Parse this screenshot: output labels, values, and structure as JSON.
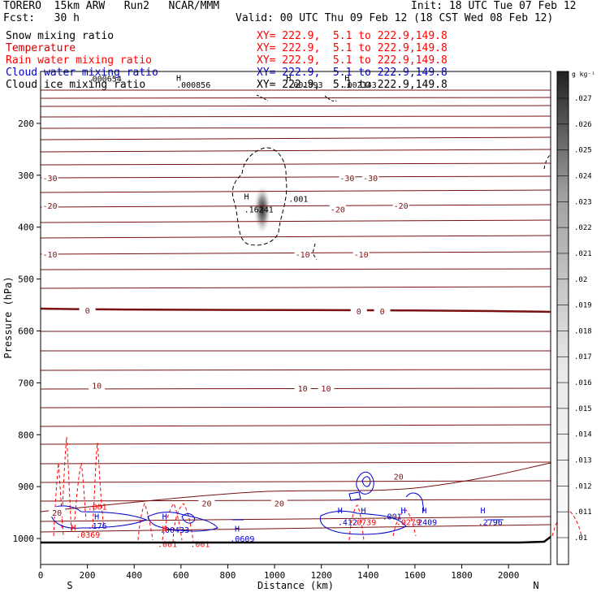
{
  "header": {
    "model_line": "TORERO  15km ARW   Run2   NCAR/MMM",
    "init": "Init: 18 UTC Tue 07 Feb 12",
    "fcst": "Fcst:   30 h",
    "valid": "Valid: 00 UTC Thu 09 Feb 12 (18 CST Wed 08 Feb 12)"
  },
  "fields": [
    {
      "name": "Snow mixing ratio",
      "color": "#000000",
      "xsect": "XY= 222.9,  5.1 to 222.9,149.8",
      "xcolor": "#ff0000"
    },
    {
      "name": "Temperature",
      "color": "#cc0000",
      "xsect": "XY= 222.9,  5.1 to 222.9,149.8",
      "xcolor": "#ff0000"
    },
    {
      "name": "Rain water mixing ratio",
      "color": "#ff0000",
      "xsect": "XY= 222.9,  5.1 to 222.9,149.8",
      "xcolor": "#ff0000"
    },
    {
      "name": "Cloud water mixing ratio",
      "color": "#0000cc",
      "xsect": "XY= 222.9,  5.1 to 222.9,149.8",
      "xcolor": "#0000cc"
    },
    {
      "name": "Cloud ice mixing ratio",
      "color": "#000000",
      "xsect": "XY= 222.9,  5.1 to 222.9,149.8",
      "xcolor": "#000000"
    }
  ],
  "chart_data": {
    "type": "contour",
    "xlabel": "Distance (km)",
    "ylabel": "Pressure (hPa)",
    "xlim": [
      0,
      2180
    ],
    "ylim": [
      1050,
      100
    ],
    "x_ticks": [
      0,
      200,
      400,
      600,
      800,
      1000,
      1200,
      1400,
      1600,
      1800,
      2000
    ],
    "y_ticks": [
      200,
      300,
      400,
      500,
      600,
      700,
      800,
      900,
      1000
    ],
    "end_labels": {
      "left": "S",
      "right": "N"
    },
    "colorbar": {
      "unit": "g kg⁻¹",
      "ticks": [
        ".01",
        ".011",
        ".012",
        ".013",
        ".014",
        ".015",
        ".016",
        ".017",
        ".018",
        ".019",
        ".02",
        ".021",
        ".022",
        ".023",
        ".024",
        ".025",
        ".026",
        ".027"
      ]
    },
    "temperature_labels": [
      {
        "value": "-30",
        "x": 40,
        "p": 305
      },
      {
        "value": "-30",
        "x": 1310,
        "p": 305
      },
      {
        "value": "-30",
        "x": 1410,
        "p": 305
      },
      {
        "value": "-20",
        "x": 40,
        "p": 358
      },
      {
        "value": "-20",
        "x": 1270,
        "p": 365
      },
      {
        "value": "-20",
        "x": 1540,
        "p": 358
      },
      {
        "value": "-10",
        "x": 40,
        "p": 452
      },
      {
        "value": "-10",
        "x": 1120,
        "p": 452
      },
      {
        "value": "-10",
        "x": 1370,
        "p": 452
      },
      {
        "value": "0",
        "x": 200,
        "p": 560
      },
      {
        "value": "0",
        "x": 1360,
        "p": 562
      },
      {
        "value": "0",
        "x": 1460,
        "p": 562
      },
      {
        "value": "10",
        "x": 240,
        "p": 705
      },
      {
        "value": "10",
        "x": 1120,
        "p": 710
      },
      {
        "value": "10",
        "x": 1220,
        "p": 710
      },
      {
        "value": "20",
        "x": 1020,
        "p": 932
      },
      {
        "value": "20",
        "x": 1530,
        "p": 880
      },
      {
        "value": "20",
        "x": 710,
        "p": 932
      },
      {
        "value": "20",
        "x": 70,
        "p": 950
      }
    ],
    "value_labels": [
      {
        "text": ".000654",
        "x": 200,
        "p": 113,
        "color": "#000000"
      },
      {
        "text": ".000856",
        "x": 580,
        "p": 125,
        "color": "#000000"
      },
      {
        "text": ".001893",
        "x": 1060,
        "p": 125,
        "color": "#000000"
      },
      {
        "text": ".002143",
        "x": 1290,
        "p": 125,
        "color": "#000000"
      },
      {
        "text": ".16241",
        "x": 870,
        "p": 365,
        "color": "#000000"
      },
      {
        "text": ".001",
        "x": 1060,
        "p": 345,
        "color": "#000000"
      },
      {
        "text": ".001",
        "x": 200,
        "p": 938,
        "color": "#ff0000"
      },
      {
        "text": ".0369",
        "x": 150,
        "p": 992,
        "color": "#ff0000"
      },
      {
        "text": ".176",
        "x": 200,
        "p": 975,
        "color": "#0000cc"
      },
      {
        "text": ".00433",
        "x": 510,
        "p": 983,
        "color": "#0000cc"
      },
      {
        "text": ".001",
        "x": 500,
        "p": 1010,
        "color": "#ff0000"
      },
      {
        "text": ".001",
        "x": 640,
        "p": 1010,
        "color": "#ff0000"
      },
      {
        "text": ".0609",
        "x": 810,
        "p": 1000,
        "color": "#0000cc"
      },
      {
        "text": ".412",
        "x": 1270,
        "p": 968,
        "color": "#0000cc"
      },
      {
        "text": ".0739",
        "x": 1330,
        "p": 968,
        "color": "#ff0000"
      },
      {
        "text": ".001",
        "x": 1460,
        "p": 957,
        "color": "#0000cc"
      },
      {
        "text": ".0279",
        "x": 1520,
        "p": 968,
        "color": "#ff0000"
      },
      {
        "text": ".2409",
        "x": 1590,
        "p": 968,
        "color": "#0000cc"
      },
      {
        "text": ".2796",
        "x": 1870,
        "p": 968,
        "color": "#0000cc"
      }
    ],
    "h_markers": [
      {
        "x": 590,
        "p": 112,
        "color": "#000000"
      },
      {
        "x": 1060,
        "p": 112,
        "color": "#000000"
      },
      {
        "x": 1310,
        "p": 112,
        "color": "#000000"
      },
      {
        "x": 880,
        "p": 340,
        "color": "#000000"
      },
      {
        "x": 240,
        "p": 957,
        "color": "#0000cc"
      },
      {
        "x": 140,
        "p": 978,
        "color": "#ff0000"
      },
      {
        "x": 530,
        "p": 957,
        "color": "#0000cc"
      },
      {
        "x": 530,
        "p": 980,
        "color": "#ff0000"
      },
      {
        "x": 840,
        "p": 980,
        "color": "#0000cc"
      },
      {
        "x": 1280,
        "p": 945,
        "color": "#0000cc"
      },
      {
        "x": 1380,
        "p": 945,
        "color": "#0000cc"
      },
      {
        "x": 1550,
        "p": 945,
        "color": "#0000cc"
      },
      {
        "x": 1640,
        "p": 945,
        "color": "#0000cc"
      },
      {
        "x": 1890,
        "p": 945,
        "color": "#0000cc"
      }
    ]
  }
}
